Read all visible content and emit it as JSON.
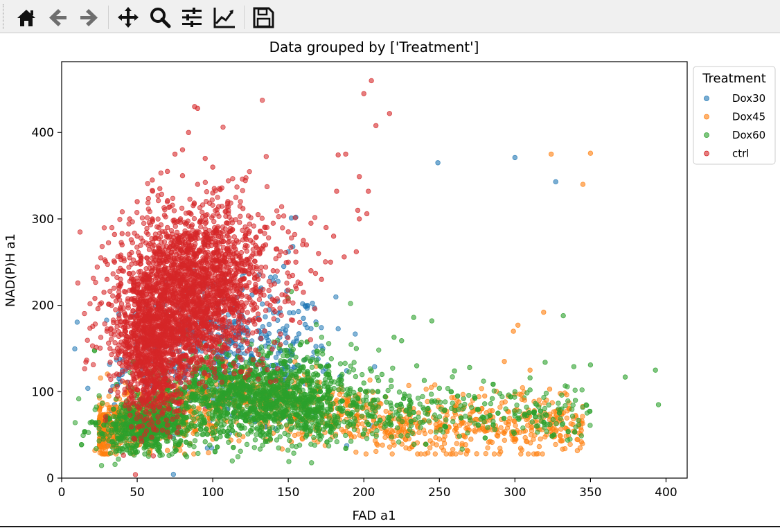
{
  "toolbar": {
    "items": [
      {
        "icon": "home-icon"
      },
      {
        "icon": "back-arrow-icon"
      },
      {
        "icon": "forward-arrow-icon"
      },
      {
        "icon": "pan-move-icon"
      },
      {
        "icon": "zoom-magnifier-icon"
      },
      {
        "icon": "configure-subplots-icon"
      },
      {
        "icon": "edit-axis-line-icon"
      },
      {
        "icon": "save-floppy-icon"
      }
    ]
  },
  "colors": {
    "Dox30": "#1f77b4",
    "Dox45": "#ff7f0e",
    "Dox60": "#2ca02c",
    "ctrl": "#d62728"
  },
  "chart_data": {
    "type": "scatter",
    "title": "Data grouped by ['Treatment']",
    "xlabel": "FAD a1",
    "ylabel": "NAD(P)H a1",
    "xlim": [
      0,
      414
    ],
    "ylim": [
      0,
      482
    ],
    "xticks": [
      0,
      50,
      100,
      150,
      200,
      250,
      300,
      350,
      400
    ],
    "yticks": [
      0,
      100,
      200,
      300,
      400
    ],
    "grid": false,
    "legend": {
      "title": "Treatment",
      "placement": "top-right outside",
      "entries": [
        "Dox30",
        "Dox45",
        "Dox60",
        "ctrl"
      ]
    },
    "series": [
      {
        "name": "Dox30",
        "color": "#1f77b4",
        "points": [
          [
            249,
            365
          ],
          [
            300,
            371
          ],
          [
            327,
            343
          ],
          [
            155,
            302
          ],
          [
            152,
            301
          ],
          [
            153,
            268
          ],
          [
            150,
            262
          ],
          [
            147,
            245
          ],
          [
            140,
            228
          ],
          [
            132,
            220
          ],
          [
            126,
            212
          ],
          [
            120,
            186
          ],
          [
            118,
            183
          ],
          [
            110,
            175
          ],
          [
            35,
            85
          ],
          [
            33,
            78
          ],
          [
            37,
            108
          ],
          [
            38,
            115
          ],
          [
            40,
            120
          ],
          [
            42,
            124
          ],
          [
            44,
            128
          ],
          [
            46,
            132
          ],
          [
            160,
            185
          ],
          [
            157,
            167
          ],
          [
            143,
            205
          ],
          [
            138,
            210
          ]
        ]
      },
      {
        "name": "Dox45",
        "color": "#ff7f0e",
        "points": [
          [
            324,
            375
          ],
          [
            350,
            376
          ],
          [
            345,
            340
          ],
          [
            319,
            192
          ],
          [
            302,
            177
          ],
          [
            299,
            170
          ],
          [
            293,
            135
          ],
          [
            310,
            125
          ],
          [
            323,
            103
          ],
          [
            336,
            80
          ],
          [
            300,
            97
          ],
          [
            280,
            95
          ],
          [
            250,
            60
          ],
          [
            220,
            48
          ],
          [
            196,
            55
          ],
          [
            160,
            50
          ],
          [
            140,
            52
          ],
          [
            120,
            48
          ],
          [
            100,
            45
          ],
          [
            85,
            40
          ],
          [
            70,
            32
          ],
          [
            22,
            32
          ],
          [
            26,
            40
          ],
          [
            30,
            52
          ],
          [
            152,
            42
          ],
          [
            170,
            55
          ],
          [
            205,
            55
          ],
          [
            225,
            65
          ],
          [
            270,
            70
          ],
          [
            330,
            98
          ],
          [
            285,
            78
          ],
          [
            243,
            78
          ],
          [
            190,
            90
          ],
          [
            175,
            62
          ],
          [
            135,
            45
          ],
          [
            112,
            44
          ]
        ]
      },
      {
        "name": "Dox60",
        "color": "#2ca02c",
        "points": [
          [
            395,
            85
          ],
          [
            393,
            125
          ],
          [
            373,
            117
          ],
          [
            350,
            131
          ],
          [
            339,
            129
          ],
          [
            332,
            188
          ],
          [
            331,
            80
          ],
          [
            320,
            134
          ],
          [
            310,
            116
          ],
          [
            306,
            93
          ],
          [
            300,
            100
          ],
          [
            290,
            98
          ],
          [
            280,
            86
          ],
          [
            270,
            128
          ],
          [
            266,
            92
          ],
          [
            260,
            124
          ],
          [
            250,
            104
          ],
          [
            245,
            182
          ],
          [
            240,
            113
          ],
          [
            235,
            130
          ],
          [
            233,
            186
          ],
          [
            230,
            95
          ],
          [
            225,
            159
          ],
          [
            220,
            163
          ],
          [
            218,
            113
          ],
          [
            212,
            120
          ],
          [
            205,
            124
          ],
          [
            200,
            110
          ],
          [
            195,
            150
          ],
          [
            190,
            95
          ],
          [
            185,
            118
          ],
          [
            175,
            120
          ],
          [
            170,
            100
          ],
          [
            160,
            128
          ],
          [
            155,
            140
          ],
          [
            152,
            216
          ],
          [
            150,
            208
          ],
          [
            145,
            110
          ],
          [
            140,
            102
          ],
          [
            130,
            90
          ],
          [
            120,
            95
          ],
          [
            110,
            80
          ],
          [
            100,
            85
          ],
          [
            90,
            70
          ],
          [
            80,
            75
          ],
          [
            70,
            60
          ],
          [
            60,
            50
          ],
          [
            50,
            45
          ],
          [
            45,
            35
          ],
          [
            40,
            30
          ],
          [
            35,
            60
          ],
          [
            30,
            70
          ],
          [
            25,
            68
          ],
          [
            20,
            65
          ],
          [
            55,
            28
          ],
          [
            65,
            30
          ],
          [
            75,
            35
          ],
          [
            85,
            40
          ],
          [
            95,
            42
          ],
          [
            105,
            48
          ],
          [
            115,
            52
          ],
          [
            125,
            55
          ],
          [
            135,
            60
          ],
          [
            160,
            58
          ],
          [
            180,
            62
          ],
          [
            210,
            64
          ],
          [
            240,
            66
          ],
          [
            270,
            70
          ],
          [
            300,
            75
          ],
          [
            340,
            90
          ],
          [
            230,
            76
          ],
          [
            195,
            72
          ],
          [
            165,
            78
          ],
          [
            145,
            70
          ],
          [
            128,
            65
          ],
          [
            200,
            85
          ],
          [
            260,
            82
          ],
          [
            310,
            102
          ],
          [
            285,
            92
          ],
          [
            215,
            88
          ],
          [
            176,
            105
          ],
          [
            148,
            120
          ],
          [
            132,
            135
          ],
          [
            118,
            140
          ],
          [
            105,
            130
          ],
          [
            95,
            118
          ],
          [
            88,
            110
          ],
          [
            75,
            100
          ],
          [
            62,
            90
          ],
          [
            52,
            80
          ],
          [
            44,
            72
          ]
        ]
      },
      {
        "name": "ctrl",
        "color": "#d62728",
        "points": [
          [
            205,
            460
          ],
          [
            200,
            445
          ],
          [
            217,
            422
          ],
          [
            208,
            408
          ],
          [
            88,
            430
          ],
          [
            90,
            428
          ],
          [
            84,
            400
          ],
          [
            80,
            380
          ],
          [
            75,
            375
          ],
          [
            95,
            370
          ],
          [
            100,
            360
          ],
          [
            60,
            333
          ],
          [
            65,
            335
          ],
          [
            40,
            283
          ],
          [
            35,
            282
          ],
          [
            22,
            208
          ],
          [
            24,
            196
          ],
          [
            30,
            170
          ],
          [
            32,
            150
          ],
          [
            183,
            374
          ],
          [
            188,
            375
          ],
          [
            197,
            349
          ],
          [
            182,
            332
          ],
          [
            203,
            332
          ],
          [
            196,
            310
          ],
          [
            197,
            300
          ],
          [
            202,
            306
          ],
          [
            180,
            280
          ],
          [
            187,
            256
          ],
          [
            195,
            262
          ],
          [
            175,
            290
          ],
          [
            165,
            295
          ],
          [
            162,
            270
          ],
          [
            155,
            262
          ],
          [
            150,
            250
          ],
          [
            140,
            240
          ],
          [
            130,
            230
          ],
          [
            120,
            220
          ],
          [
            110,
            210
          ],
          [
            100,
            200
          ],
          [
            90,
            190
          ],
          [
            80,
            180
          ],
          [
            70,
            170
          ],
          [
            60,
            160
          ],
          [
            50,
            150
          ],
          [
            45,
            140
          ],
          [
            40,
            130
          ],
          [
            55,
            120
          ],
          [
            65,
            110
          ],
          [
            75,
            100
          ],
          [
            85,
            90
          ],
          [
            95,
            80
          ],
          [
            60,
            85
          ],
          [
            55,
            75
          ],
          [
            52,
            70
          ],
          [
            58,
            95
          ],
          [
            62,
            98
          ],
          [
            70,
            105
          ],
          [
            78,
            112
          ],
          [
            88,
            125
          ],
          [
            98,
            140
          ],
          [
            108,
            155
          ],
          [
            118,
            170
          ],
          [
            128,
            185
          ],
          [
            138,
            200
          ],
          [
            148,
            212
          ],
          [
            158,
            225
          ],
          [
            168,
            237
          ],
          [
            178,
            250
          ],
          [
            170,
            260
          ],
          [
            160,
            275
          ],
          [
            150,
            285
          ],
          [
            140,
            295
          ],
          [
            130,
            305
          ],
          [
            120,
            312
          ],
          [
            110,
            320
          ],
          [
            100,
            330
          ],
          [
            90,
            340
          ],
          [
            80,
            350
          ],
          [
            70,
            355
          ],
          [
            60,
            345
          ],
          [
            50,
            320
          ],
          [
            45,
            300
          ],
          [
            40,
            270
          ],
          [
            35,
            250
          ],
          [
            30,
            230
          ],
          [
            28,
            215
          ],
          [
            33,
            200
          ],
          [
            38,
            185
          ],
          [
            42,
            175
          ],
          [
            48,
            165
          ],
          [
            55,
            175
          ],
          [
            65,
            190
          ],
          [
            75,
            205
          ],
          [
            85,
            220
          ],
          [
            95,
            235
          ],
          [
            105,
            250
          ],
          [
            115,
            265
          ],
          [
            125,
            275
          ],
          [
            135,
            270
          ],
          [
            145,
            262
          ],
          [
            155,
            250
          ],
          [
            165,
            240
          ],
          [
            172,
            230
          ],
          [
            160,
            215
          ],
          [
            150,
            205
          ],
          [
            140,
            195
          ],
          [
            130,
            190
          ],
          [
            120,
            200
          ],
          [
            110,
            225
          ],
          [
            100,
            245
          ],
          [
            90,
            260
          ],
          [
            80,
            275
          ],
          [
            70,
            290
          ],
          [
            60,
            300
          ],
          [
            50,
            280
          ],
          [
            45,
            255
          ],
          [
            40,
            240
          ],
          [
            38,
            220
          ],
          [
            36,
            205
          ]
        ]
      }
    ]
  }
}
